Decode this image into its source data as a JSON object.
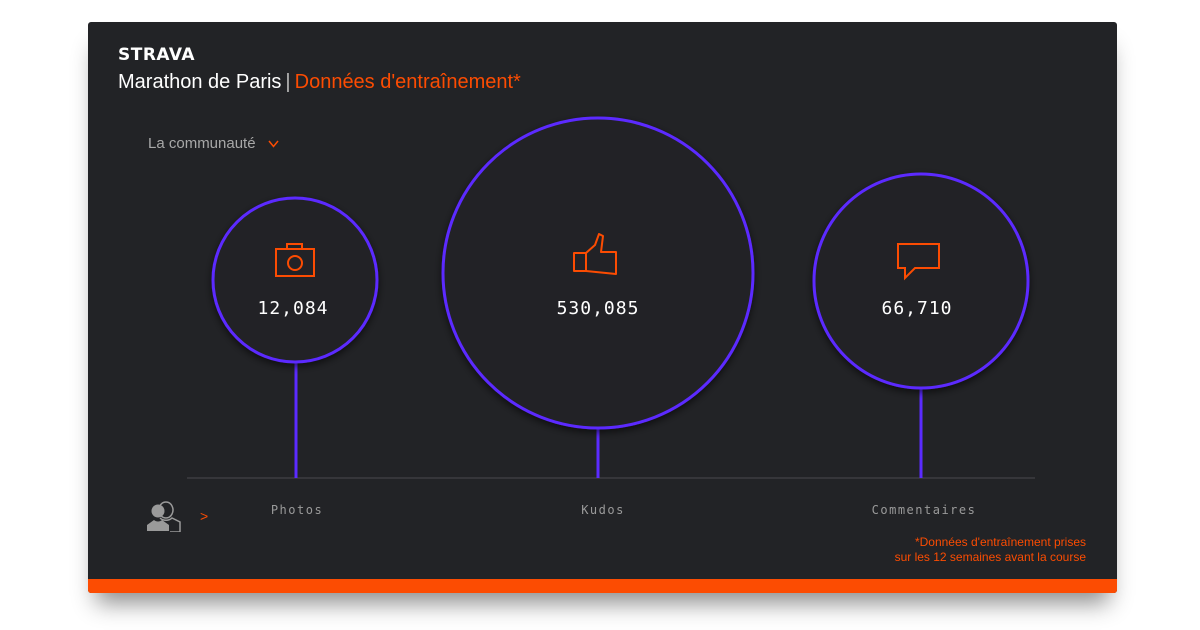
{
  "brand": "STRAVA",
  "header": {
    "title": "Marathon de Paris",
    "separator": "|",
    "subtitle": "Données d'entraînement*"
  },
  "filter": {
    "label": "La communauté",
    "icon": "chevron-down-icon"
  },
  "metrics": [
    {
      "label": "Photos",
      "value": "12,084",
      "icon": "camera-icon"
    },
    {
      "label": "Kudos",
      "value": "530,085",
      "icon": "thumbs-up-icon"
    },
    {
      "label": "Commentaires",
      "value": "66,710",
      "icon": "comment-icon"
    }
  ],
  "people_toggle": {
    "icon": "users-icon",
    "arrow": ">"
  },
  "footnote": {
    "line1": "*Données d'entraînement prises",
    "line2": "sur les 12 semaines avant la course"
  },
  "colors": {
    "accent": "#fc4c02",
    "circle": "#5b2bff",
    "background": "#222326"
  }
}
